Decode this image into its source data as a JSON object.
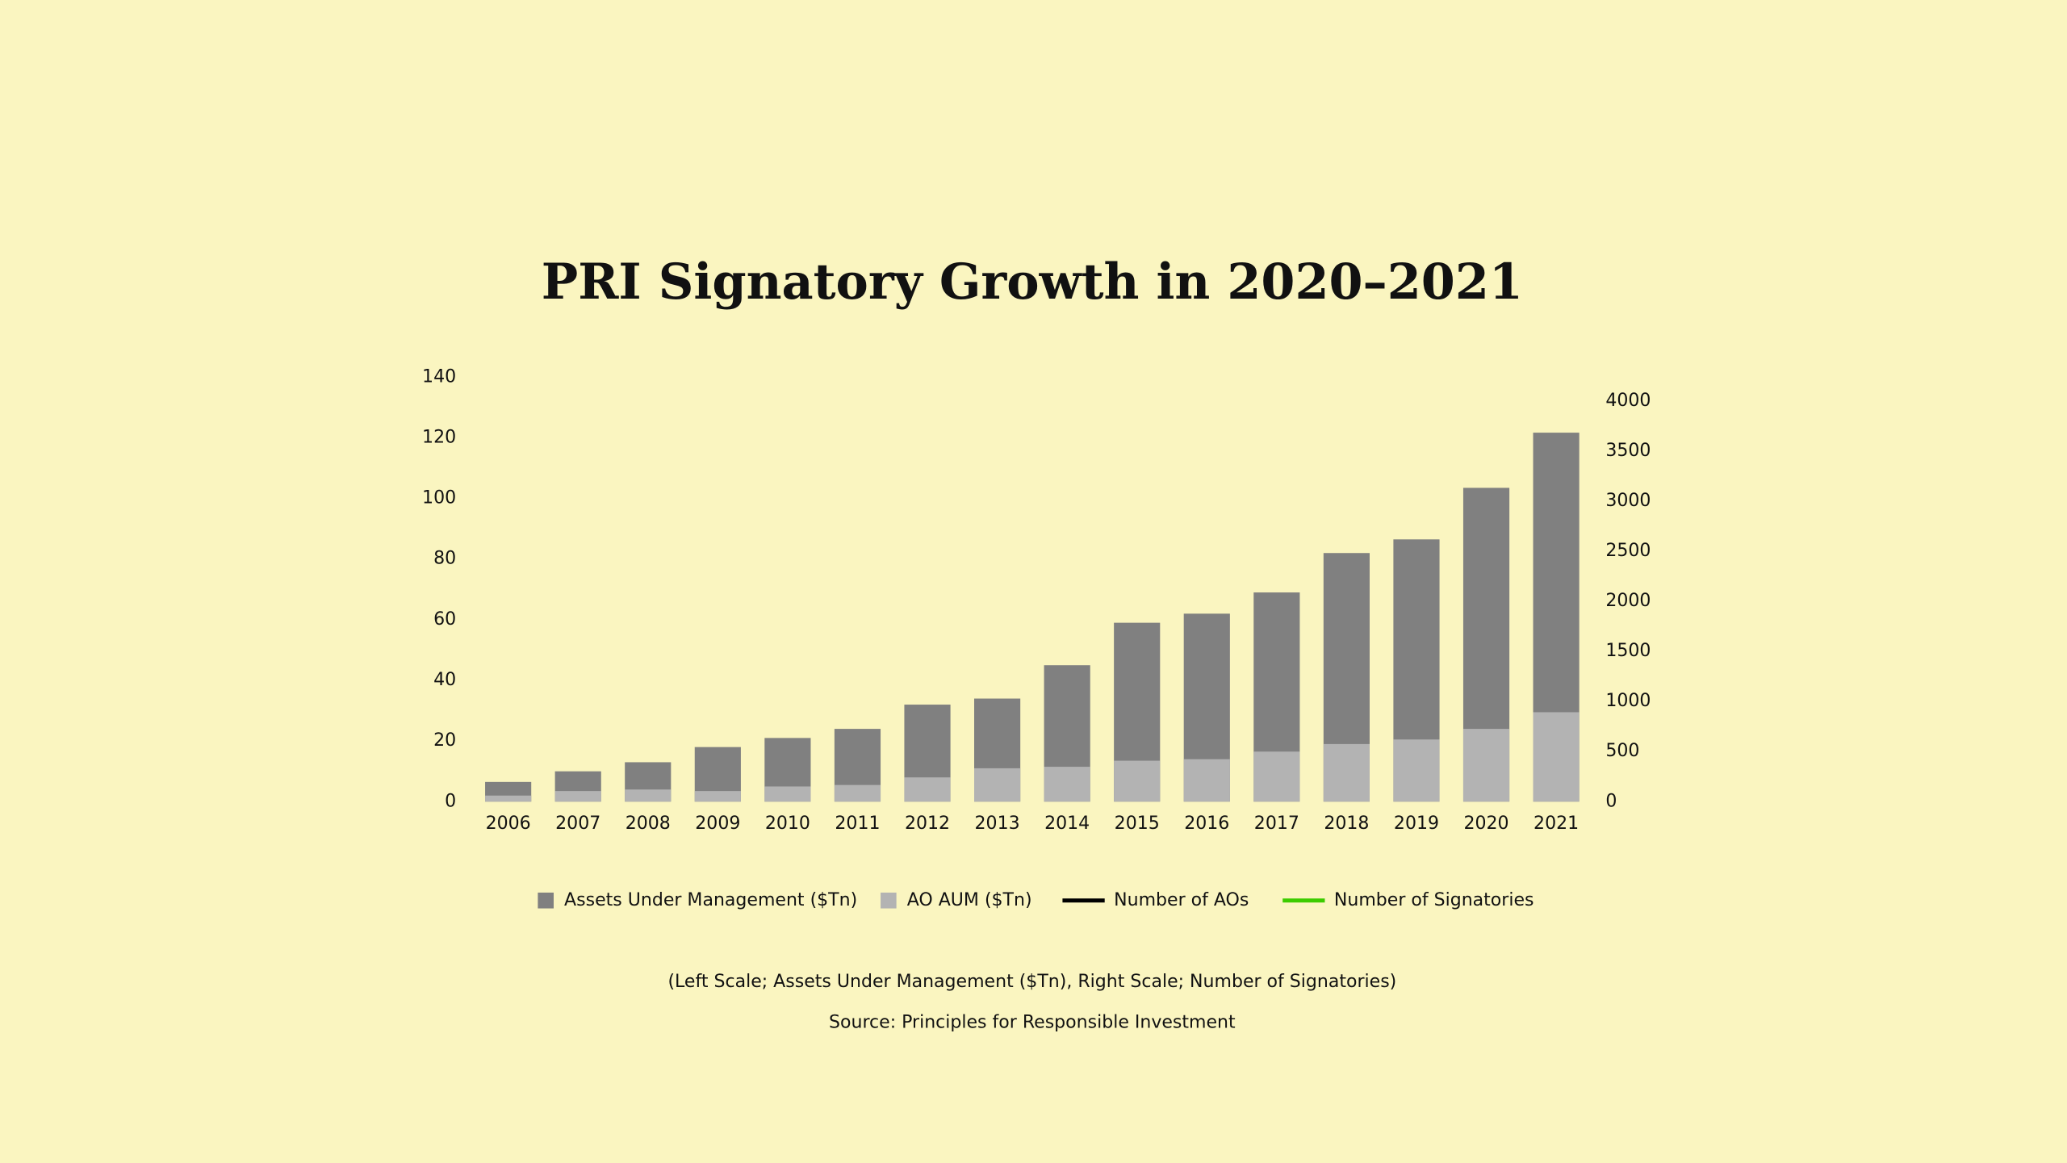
{
  "chart_data": {
    "type": "bar",
    "title": "PRI Signatory Growth in 2020–2021",
    "categories": [
      "2006",
      "2007",
      "2008",
      "2009",
      "2010",
      "2011",
      "2012",
      "2013",
      "2014",
      "2015",
      "2016",
      "2017",
      "2018",
      "2019",
      "2020",
      "2021"
    ],
    "series": [
      {
        "name": "Assets Under Management ($Tn)",
        "color": "#808080",
        "values": [
          6.5,
          10,
          13,
          18,
          21,
          24,
          32,
          34,
          45,
          59,
          62,
          69,
          82,
          86.5,
          103.5,
          121.7
        ]
      },
      {
        "name": "AO AUM ($Tn)",
        "color": "#b3b3b3",
        "values": [
          2,
          3.5,
          4,
          3.5,
          5,
          5.5,
          8,
          11,
          11.5,
          13.5,
          14,
          16.5,
          19,
          20.5,
          24,
          29.5
        ]
      },
      {
        "name": "Number of AOs",
        "color": "#000000"
      },
      {
        "name": "Number of Signatories",
        "color": "#3ccc00"
      }
    ],
    "overlap": true,
    "ylim": [
      0,
      140
    ],
    "yticks": [
      0,
      20,
      40,
      60,
      80,
      100,
      120,
      140
    ],
    "y2lim": [
      0,
      4237
    ],
    "y2ticks": [
      0,
      500,
      1000,
      1500,
      2000,
      2500,
      3000,
      3500,
      4000
    ],
    "note": "(Left Scale; Assets Under Management ($Tn),  Right Scale; Number of Signatories)",
    "source": "Source: Principles for Responsible Investment"
  }
}
